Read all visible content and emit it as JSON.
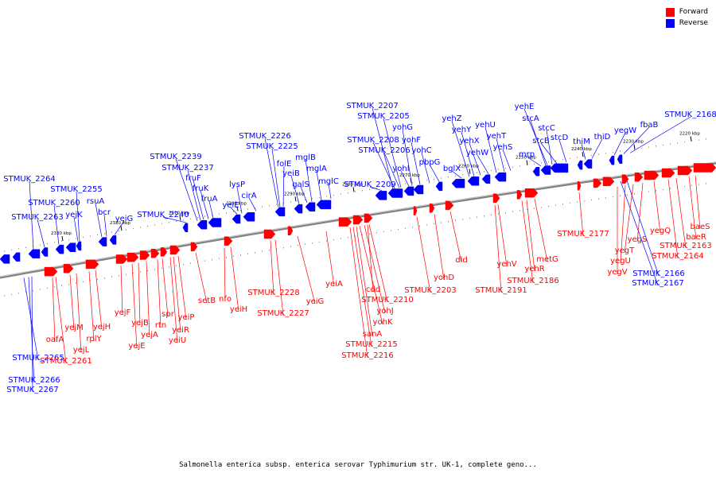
{
  "legend": [
    {
      "label": "Forward",
      "color": "#ff0000"
    },
    {
      "label": "Reverse",
      "color": "#0000ff"
    }
  ],
  "caption": "Salmonella enterica subsp. enterica serovar Typhimurium str. UK-1, complete geno...",
  "colors": {
    "forward": "#ff0000",
    "reverse": "#0000ff",
    "backbone": "#808080"
  },
  "ticks": [
    "2220 kbp",
    "2230 kbp",
    "2240 kbp",
    "2250 kbp",
    "2260 kbp",
    "2270 kbp",
    "2280 kbp",
    "2290 kbp",
    "2300 kbp",
    "2310 kbp",
    "2320 kbp",
    "2330 kbp"
  ],
  "reverse_labels": [
    "STMUK_2168",
    "fbaB",
    "yegW",
    "thiD",
    "thiM",
    "stcD",
    "stcB",
    "stcC",
    "mrp",
    "stcA",
    "yehE",
    "yehS",
    "yehT",
    "yehW",
    "yehU",
    "yehX",
    "yehY",
    "bglX",
    "yehZ",
    "pbpG",
    "yohC",
    "yohF",
    "yohG",
    "yohI",
    "STMUK_2205",
    "STMUK_2206",
    "STMUK_2207",
    "STMUK_2208",
    "STMUK_2209",
    "mglC",
    "mglA",
    "mglB",
    "galS",
    "yeiB",
    "folE",
    "STMUK_2225",
    "STMUK_2226",
    "cirA",
    "lysP",
    "yeiE",
    "fruA",
    "fruK",
    "fruF",
    "STMUK_2237",
    "STMUK_2239",
    "STMUK_2240",
    "yeiG",
    "bcr",
    "rsuA",
    "yejK",
    "STMUK_2255",
    "STMUK_2260",
    "STMUK_2263",
    "STMUK_2264",
    "STMUK_2265",
    "STMUK_2266",
    "STMUK_2267",
    "STMUK_2167",
    "STMUK_2166"
  ],
  "forward_labels": [
    "baeS",
    "baeR",
    "STMUK_2163",
    "STMUK_2164",
    "yegQ",
    "yegS",
    "yegT",
    "yegU",
    "yegV",
    "STMUK_2177",
    "metG",
    "yehR",
    "STMUK_2186",
    "yehV",
    "STMUK_2191",
    "dld",
    "yohD",
    "STMUK_2203",
    "STMUK_2210",
    "yohJ",
    "yohK",
    "cdd",
    "sanA",
    "STMUK_2215",
    "STMUK_2216",
    "yeiA",
    "yeiG",
    "STMUK_2227",
    "STMUK_2228",
    "yeiH",
    "nfo",
    "setB",
    "yeiP",
    "yeiR",
    "yeiU",
    "spr",
    "rtn",
    "yejA",
    "yejB",
    "yejE",
    "yejF",
    "yejH",
    "rplY",
    "yejL",
    "yejM",
    "oafA",
    "STMUK_2261"
  ]
}
